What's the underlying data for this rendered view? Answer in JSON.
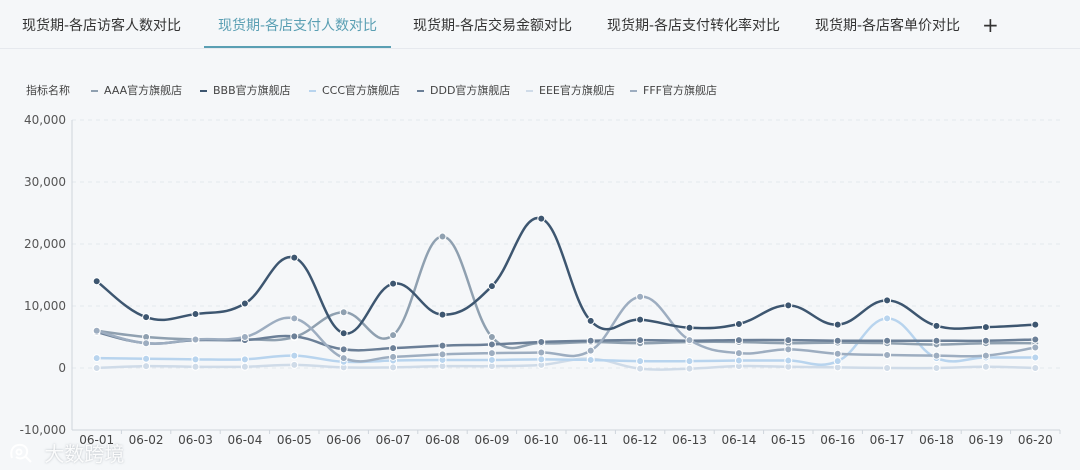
{
  "tabs": [
    {
      "label": "现货期-各店访客人数对比",
      "active": false
    },
    {
      "label": "现货期-各店支付人数对比",
      "active": true
    },
    {
      "label": "现货期-各店交易金额对比",
      "active": false
    },
    {
      "label": "现货期-各店支付转化率对比",
      "active": false
    },
    {
      "label": "现货期-各店客单价对比",
      "active": false
    }
  ],
  "add_tab_label": "+",
  "legend_title": "指标名称",
  "watermark_text": "大数跨境",
  "colors": {
    "AAA": "#8fa0b0",
    "BBB": "#3d5670",
    "CCC": "#b8d4ee",
    "DDD": "#6b7f97",
    "EEE": "#cfdbe8",
    "FFF": "#9dadc0",
    "active_tab": "#5a9fb3"
  },
  "chart_data": {
    "type": "line",
    "smooth": true,
    "categories": [
      "06-01",
      "06-02",
      "06-03",
      "06-04",
      "06-05",
      "06-06",
      "06-07",
      "06-08",
      "06-09",
      "06-10",
      "06-11",
      "06-12",
      "06-13",
      "06-14",
      "06-15",
      "06-16",
      "06-17",
      "06-18",
      "06-19",
      "06-20"
    ],
    "ylim": [
      -10000,
      40000
    ],
    "yticks": [
      -10000,
      0,
      10000,
      20000,
      30000,
      40000
    ],
    "ytick_labels": [
      "-10,000",
      "0",
      "10,000",
      "20,000",
      "30,000",
      "40,000"
    ],
    "grid": "horizontal-dashed",
    "legend_position": "top-left",
    "series": [
      {
        "name": "AAA官方旗舰店",
        "values": [
          6000,
          5000,
          4600,
          4600,
          5000,
          9000,
          5300,
          21200,
          5000,
          4000,
          4200,
          4000,
          4200,
          4200,
          4000,
          4100,
          4000,
          3800,
          4000,
          4000
        ]
      },
      {
        "name": "BBB官方旗舰店",
        "values": [
          14000,
          8200,
          8700,
          10400,
          17800,
          5600,
          13600,
          8600,
          13200,
          24100,
          7600,
          7800,
          6500,
          7100,
          10100,
          7000,
          10900,
          6800,
          6600,
          7000
        ]
      },
      {
        "name": "CCC官方旗舰店",
        "values": [
          1600,
          1500,
          1400,
          1400,
          2000,
          1000,
          1200,
          1300,
          1300,
          1400,
          1300,
          1100,
          1100,
          1200,
          1200,
          1100,
          8000,
          1600,
          1700,
          1700
        ]
      },
      {
        "name": "DDD官方旗舰店",
        "values": [
          5800,
          4000,
          4500,
          4500,
          5100,
          3000,
          3200,
          3600,
          3800,
          4200,
          4400,
          4500,
          4400,
          4500,
          4500,
          4400,
          4400,
          4400,
          4400,
          4600
        ]
      },
      {
        "name": "EEE官方旗舰店",
        "values": [
          0,
          300,
          200,
          200,
          500,
          100,
          100,
          300,
          300,
          500,
          1500,
          -100,
          -100,
          300,
          200,
          100,
          0,
          0,
          200,
          0
        ]
      },
      {
        "name": "FFF官方旗舰店",
        "values": [
          6000,
          4000,
          4600,
          5000,
          8000,
          1600,
          1800,
          2200,
          2400,
          2500,
          2800,
          11500,
          4500,
          2400,
          3000,
          2300,
          2100,
          2000,
          2000,
          3300
        ]
      }
    ]
  }
}
